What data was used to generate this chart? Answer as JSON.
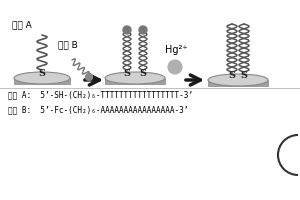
{
  "bg_color": "#f0f0f0",
  "title": "",
  "label_probe_A": "探针 A",
  "label_probe_B": "探针 B",
  "label_hg": "Hg²⁺",
  "text_line1": "探针 A:  5’-SH-(CH₂)₆-TTTTTTTTTTTTTTTTT-3’",
  "text_line2": "探针 B:  5’-Fc-(CH₂)₆-AAAAAAAAAAAAAAAA-3’",
  "arrow_color": "#1a1a1a",
  "disk_color_top": "#d0d0d0",
  "disk_color_edge": "#a0a0a0",
  "strand_color": "#555555",
  "s_label_color": "#222222",
  "dot_color": "#888888",
  "circle_outline_color": "#333333"
}
